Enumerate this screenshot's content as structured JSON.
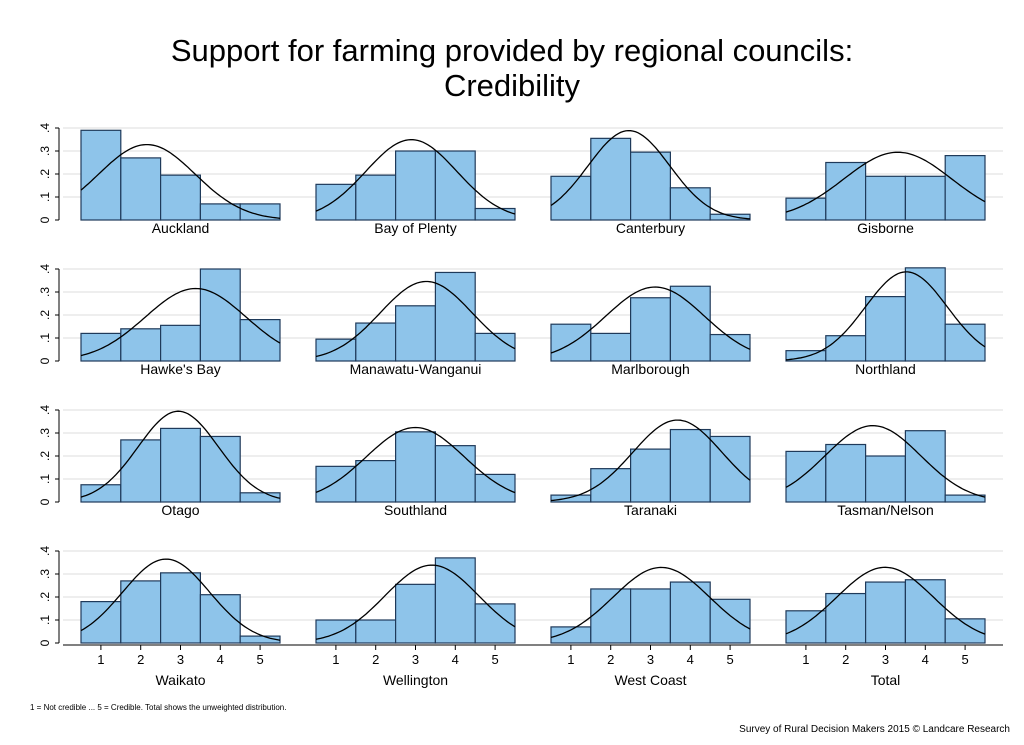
{
  "title_line1": "Support for farming provided by regional councils:",
  "title_line2": "Credibility",
  "footnote": "1 = Not credible ... 5 = Credible. Total shows the unweighted distribution.",
  "credit": "Survey of Rural Decision Makers 2015 © Landcare Research",
  "colors": {
    "bar_fill": "#8EC4EA",
    "bar_stroke": "#1F3A5A",
    "grid": "#DDDDDD",
    "curve": "#000000"
  },
  "chart_data": {
    "type": "bar",
    "subtype": "histogram with normal curve, small multiples",
    "categories": [
      "1",
      "2",
      "3",
      "4",
      "5"
    ],
    "ylim": [
      0,
      0.4
    ],
    "yticks": [
      0,
      0.1,
      0.2,
      0.3,
      0.4
    ],
    "ytick_labels": [
      "0",
      ".1",
      ".2",
      ".3",
      ".4"
    ],
    "grid": true,
    "panels": [
      {
        "label": "Auckland",
        "values": [
          0.39,
          0.27,
          0.195,
          0.07,
          0.07
        ]
      },
      {
        "label": "Bay of Plenty",
        "values": [
          0.155,
          0.195,
          0.3,
          0.3,
          0.05
        ]
      },
      {
        "label": "Canterbury",
        "values": [
          0.19,
          0.355,
          0.295,
          0.14,
          0.025
        ]
      },
      {
        "label": "Gisborne",
        "values": [
          0.095,
          0.25,
          0.19,
          0.19,
          0.28
        ]
      },
      {
        "label": "Hawke's Bay",
        "values": [
          0.12,
          0.14,
          0.155,
          0.4,
          0.18
        ]
      },
      {
        "label": "Manawatu-Wanganui",
        "values": [
          0.095,
          0.165,
          0.24,
          0.385,
          0.12
        ]
      },
      {
        "label": "Marlborough",
        "values": [
          0.16,
          0.12,
          0.275,
          0.325,
          0.115
        ]
      },
      {
        "label": "Northland",
        "values": [
          0.045,
          0.11,
          0.28,
          0.405,
          0.16
        ]
      },
      {
        "label": "Otago",
        "values": [
          0.075,
          0.27,
          0.32,
          0.285,
          0.04
        ]
      },
      {
        "label": "Southland",
        "values": [
          0.155,
          0.18,
          0.305,
          0.245,
          0.12
        ]
      },
      {
        "label": "Taranaki",
        "values": [
          0.03,
          0.145,
          0.23,
          0.315,
          0.285
        ]
      },
      {
        "label": "Tasman/Nelson",
        "values": [
          0.22,
          0.25,
          0.2,
          0.31,
          0.03
        ]
      },
      {
        "label": "Waikato",
        "values": [
          0.18,
          0.27,
          0.305,
          0.21,
          0.03
        ]
      },
      {
        "label": "Wellington",
        "values": [
          0.1,
          0.1,
          0.255,
          0.37,
          0.17
        ]
      },
      {
        "label": "West Coast",
        "values": [
          0.07,
          0.235,
          0.235,
          0.265,
          0.19
        ]
      },
      {
        "label": "Total",
        "values": [
          0.14,
          0.215,
          0.265,
          0.275,
          0.105
        ]
      }
    ]
  }
}
